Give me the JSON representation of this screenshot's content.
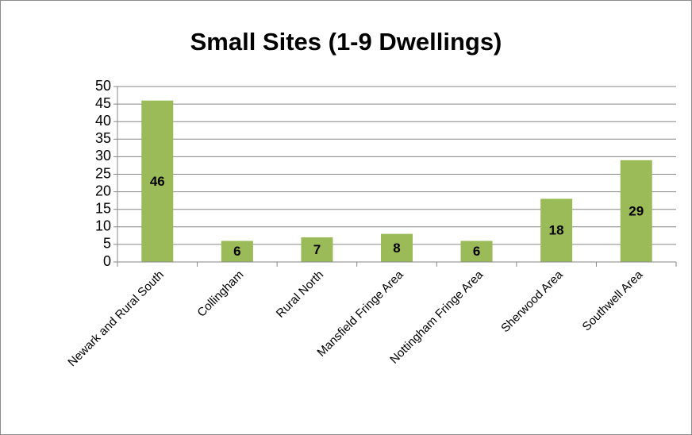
{
  "chart_data": {
    "type": "bar",
    "title": "Small Sites (1-9 Dwellings)",
    "categories": [
      "Newark and Rural South",
      "Collingham",
      "Rural North",
      "Mansfield Fringe Area",
      "Nottingham Fringe Area",
      "Sherwood Area",
      "Southwell Area"
    ],
    "values": [
      46,
      6,
      7,
      8,
      6,
      18,
      29
    ],
    "color": "#9bbb59",
    "ylim": [
      0,
      50
    ],
    "yticks": [
      0,
      5,
      10,
      15,
      20,
      25,
      30,
      35,
      40,
      45,
      50
    ],
    "grid": true
  }
}
